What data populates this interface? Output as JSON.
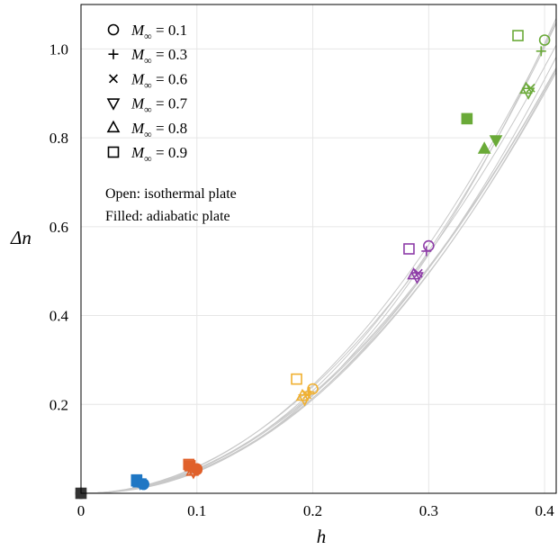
{
  "chart_data": {
    "type": "scatter",
    "title": "",
    "xlabel": "h",
    "ylabel": "Δn",
    "xlim": [
      0,
      0.41
    ],
    "ylim": [
      0,
      1.1
    ],
    "xticks": [
      0,
      0.1,
      0.2,
      0.3,
      0.4
    ],
    "xtick_labels": [
      "0",
      "0.1",
      "0.2",
      "0.3",
      "0.4"
    ],
    "yticks": [
      0.2,
      0.4,
      0.6,
      0.8,
      1.0
    ],
    "ytick_labels": [
      "0.2",
      "0.4",
      "0.6",
      "0.8",
      "1.0"
    ],
    "grid": true,
    "legend_position": "top-left",
    "legend": [
      {
        "marker": "circle",
        "label_prefix": "M",
        "label_sub": "∞",
        "label_value": " = 0.1"
      },
      {
        "marker": "plus",
        "label_prefix": "M",
        "label_sub": "∞",
        "label_value": " = 0.3"
      },
      {
        "marker": "cross",
        "label_prefix": "M",
        "label_sub": "∞",
        "label_value": " = 0.6"
      },
      {
        "marker": "triangle-down",
        "label_prefix": "M",
        "label_sub": "∞",
        "label_value": " = 0.7"
      },
      {
        "marker": "triangle-up",
        "label_prefix": "M",
        "label_sub": "∞",
        "label_value": " = 0.8"
      },
      {
        "marker": "square",
        "label_prefix": "M",
        "label_sub": "∞",
        "label_value": " = 0.9"
      }
    ],
    "notes": [
      "Open: isothermal plate",
      "Filled: adiabatic plate"
    ],
    "h_colors": {
      "0": "#333333",
      "0.05": "#1f77c4",
      "0.1": "#e0602a",
      "0.2": "#f0b030",
      "0.3": "#8e3ca8",
      "0.4": "#6aaa38"
    },
    "fit_curves": [
      {
        "coef": 6.6,
        "power": 2.05
      },
      {
        "coef": 6.5,
        "power": 2.12
      },
      {
        "coef": 6.2,
        "power": 2.1
      },
      {
        "coef": 6.0,
        "power": 2.07
      },
      {
        "coef": 5.8,
        "power": 2.02
      },
      {
        "coef": 5.9,
        "power": 2.04
      },
      {
        "coef": 6.0,
        "power": 2.0
      },
      {
        "coef": 7.6,
        "power": 2.2
      },
      {
        "coef": 7.0,
        "power": 2.12
      }
    ],
    "points": [
      {
        "x": 0.0,
        "y": 0.0,
        "marker": "square",
        "filled": true,
        "color": "#333333"
      },
      {
        "x": 0.0,
        "y": 0.0,
        "marker": "circle",
        "filled": true,
        "color": "#333333"
      },
      {
        "x": 0.048,
        "y": 0.03,
        "marker": "square",
        "filled": false,
        "color": "#1f77c4"
      },
      {
        "x": 0.048,
        "y": 0.028,
        "marker": "square",
        "filled": true,
        "color": "#1f77c4"
      },
      {
        "x": 0.05,
        "y": 0.024,
        "marker": "triangle-up",
        "filled": false,
        "color": "#1f77c4"
      },
      {
        "x": 0.051,
        "y": 0.023,
        "marker": "triangle-down",
        "filled": false,
        "color": "#1f77c4"
      },
      {
        "x": 0.052,
        "y": 0.022,
        "marker": "cross",
        "filled": false,
        "color": "#1f77c4"
      },
      {
        "x": 0.053,
        "y": 0.022,
        "marker": "plus",
        "filled": false,
        "color": "#1f77c4"
      },
      {
        "x": 0.054,
        "y": 0.021,
        "marker": "circle",
        "filled": false,
        "color": "#1f77c4"
      },
      {
        "x": 0.054,
        "y": 0.02,
        "marker": "circle",
        "filled": true,
        "color": "#1f77c4"
      },
      {
        "x": 0.093,
        "y": 0.065,
        "marker": "square",
        "filled": false,
        "color": "#e0602a"
      },
      {
        "x": 0.094,
        "y": 0.062,
        "marker": "square",
        "filled": true,
        "color": "#e0602a"
      },
      {
        "x": 0.096,
        "y": 0.05,
        "marker": "triangle-up",
        "filled": false,
        "color": "#e0602a"
      },
      {
        "x": 0.097,
        "y": 0.048,
        "marker": "triangle-down",
        "filled": false,
        "color": "#e0602a"
      },
      {
        "x": 0.097,
        "y": 0.052,
        "marker": "cross",
        "filled": false,
        "color": "#e0602a"
      },
      {
        "x": 0.098,
        "y": 0.053,
        "marker": "plus",
        "filled": false,
        "color": "#e0602a"
      },
      {
        "x": 0.1,
        "y": 0.055,
        "marker": "circle",
        "filled": false,
        "color": "#e0602a"
      },
      {
        "x": 0.1,
        "y": 0.053,
        "marker": "circle",
        "filled": true,
        "color": "#e0602a"
      },
      {
        "x": 0.186,
        "y": 0.257,
        "marker": "square",
        "filled": false,
        "color": "#f0b030"
      },
      {
        "x": 0.191,
        "y": 0.219,
        "marker": "triangle-up",
        "filled": false,
        "color": "#f0b030"
      },
      {
        "x": 0.193,
        "y": 0.212,
        "marker": "triangle-down",
        "filled": false,
        "color": "#f0b030"
      },
      {
        "x": 0.195,
        "y": 0.222,
        "marker": "cross",
        "filled": false,
        "color": "#f0b030"
      },
      {
        "x": 0.197,
        "y": 0.228,
        "marker": "plus",
        "filled": false,
        "color": "#f0b030"
      },
      {
        "x": 0.2,
        "y": 0.235,
        "marker": "circle",
        "filled": false,
        "color": "#f0b030"
      },
      {
        "x": 0.283,
        "y": 0.55,
        "marker": "square",
        "filled": false,
        "color": "#8e3ca8"
      },
      {
        "x": 0.287,
        "y": 0.492,
        "marker": "triangle-up",
        "filled": false,
        "color": "#8e3ca8"
      },
      {
        "x": 0.29,
        "y": 0.487,
        "marker": "triangle-down",
        "filled": false,
        "color": "#8e3ca8"
      },
      {
        "x": 0.291,
        "y": 0.495,
        "marker": "cross",
        "filled": false,
        "color": "#8e3ca8"
      },
      {
        "x": 0.298,
        "y": 0.545,
        "marker": "plus",
        "filled": false,
        "color": "#8e3ca8"
      },
      {
        "x": 0.3,
        "y": 0.557,
        "marker": "circle",
        "filled": false,
        "color": "#8e3ca8"
      },
      {
        "x": 0.333,
        "y": 0.843,
        "marker": "square",
        "filled": true,
        "color": "#6aaa38"
      },
      {
        "x": 0.348,
        "y": 0.775,
        "marker": "triangle-up",
        "filled": true,
        "color": "#6aaa38"
      },
      {
        "x": 0.358,
        "y": 0.795,
        "marker": "triangle-down",
        "filled": true,
        "color": "#6aaa38"
      },
      {
        "x": 0.377,
        "y": 1.03,
        "marker": "square",
        "filled": false,
        "color": "#6aaa38"
      },
      {
        "x": 0.384,
        "y": 0.91,
        "marker": "triangle-up",
        "filled": false,
        "color": "#6aaa38"
      },
      {
        "x": 0.386,
        "y": 0.902,
        "marker": "triangle-down",
        "filled": false,
        "color": "#6aaa38"
      },
      {
        "x": 0.388,
        "y": 0.912,
        "marker": "cross",
        "filled": false,
        "color": "#6aaa38"
      },
      {
        "x": 0.397,
        "y": 0.995,
        "marker": "plus",
        "filled": false,
        "color": "#6aaa38"
      },
      {
        "x": 0.4,
        "y": 1.02,
        "marker": "circle",
        "filled": false,
        "color": "#6aaa38"
      }
    ]
  }
}
